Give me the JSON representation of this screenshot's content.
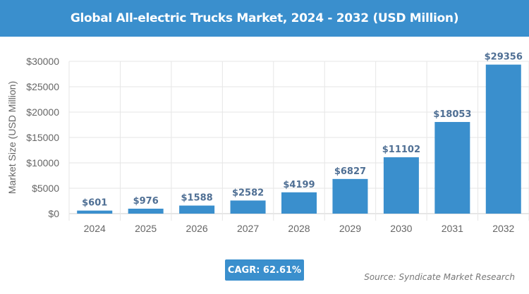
{
  "chart_data": {
    "type": "bar",
    "title": "Global All-electric Trucks Market, 2024 - 2032 (USD Million)",
    "ylabel": "Market Size (USD Million)",
    "xlabel": "",
    "categories": [
      "2024",
      "2025",
      "2026",
      "2027",
      "2028",
      "2029",
      "2030",
      "2031",
      "2032"
    ],
    "values": [
      601,
      976,
      1588,
      2582,
      4199,
      6827,
      11102,
      18053,
      29356
    ],
    "data_labels": [
      "$601",
      "$976",
      "$1588",
      "$2582",
      "$4199",
      "$6827",
      "$11102",
      "$18053",
      "$29356"
    ],
    "ylim": [
      0,
      30000
    ],
    "yticks": [
      0,
      5000,
      10000,
      15000,
      20000,
      25000,
      30000
    ],
    "ytick_labels": [
      "$0",
      "$5000",
      "$10000",
      "$15000",
      "$20000",
      "$25000",
      "$30000"
    ],
    "grid": true,
    "bar_color": "#3a8fcd",
    "label_color": "#4f6f94"
  },
  "cagr": "CAGR: 62.61%",
  "source": "Source: Syndicate Market Research"
}
